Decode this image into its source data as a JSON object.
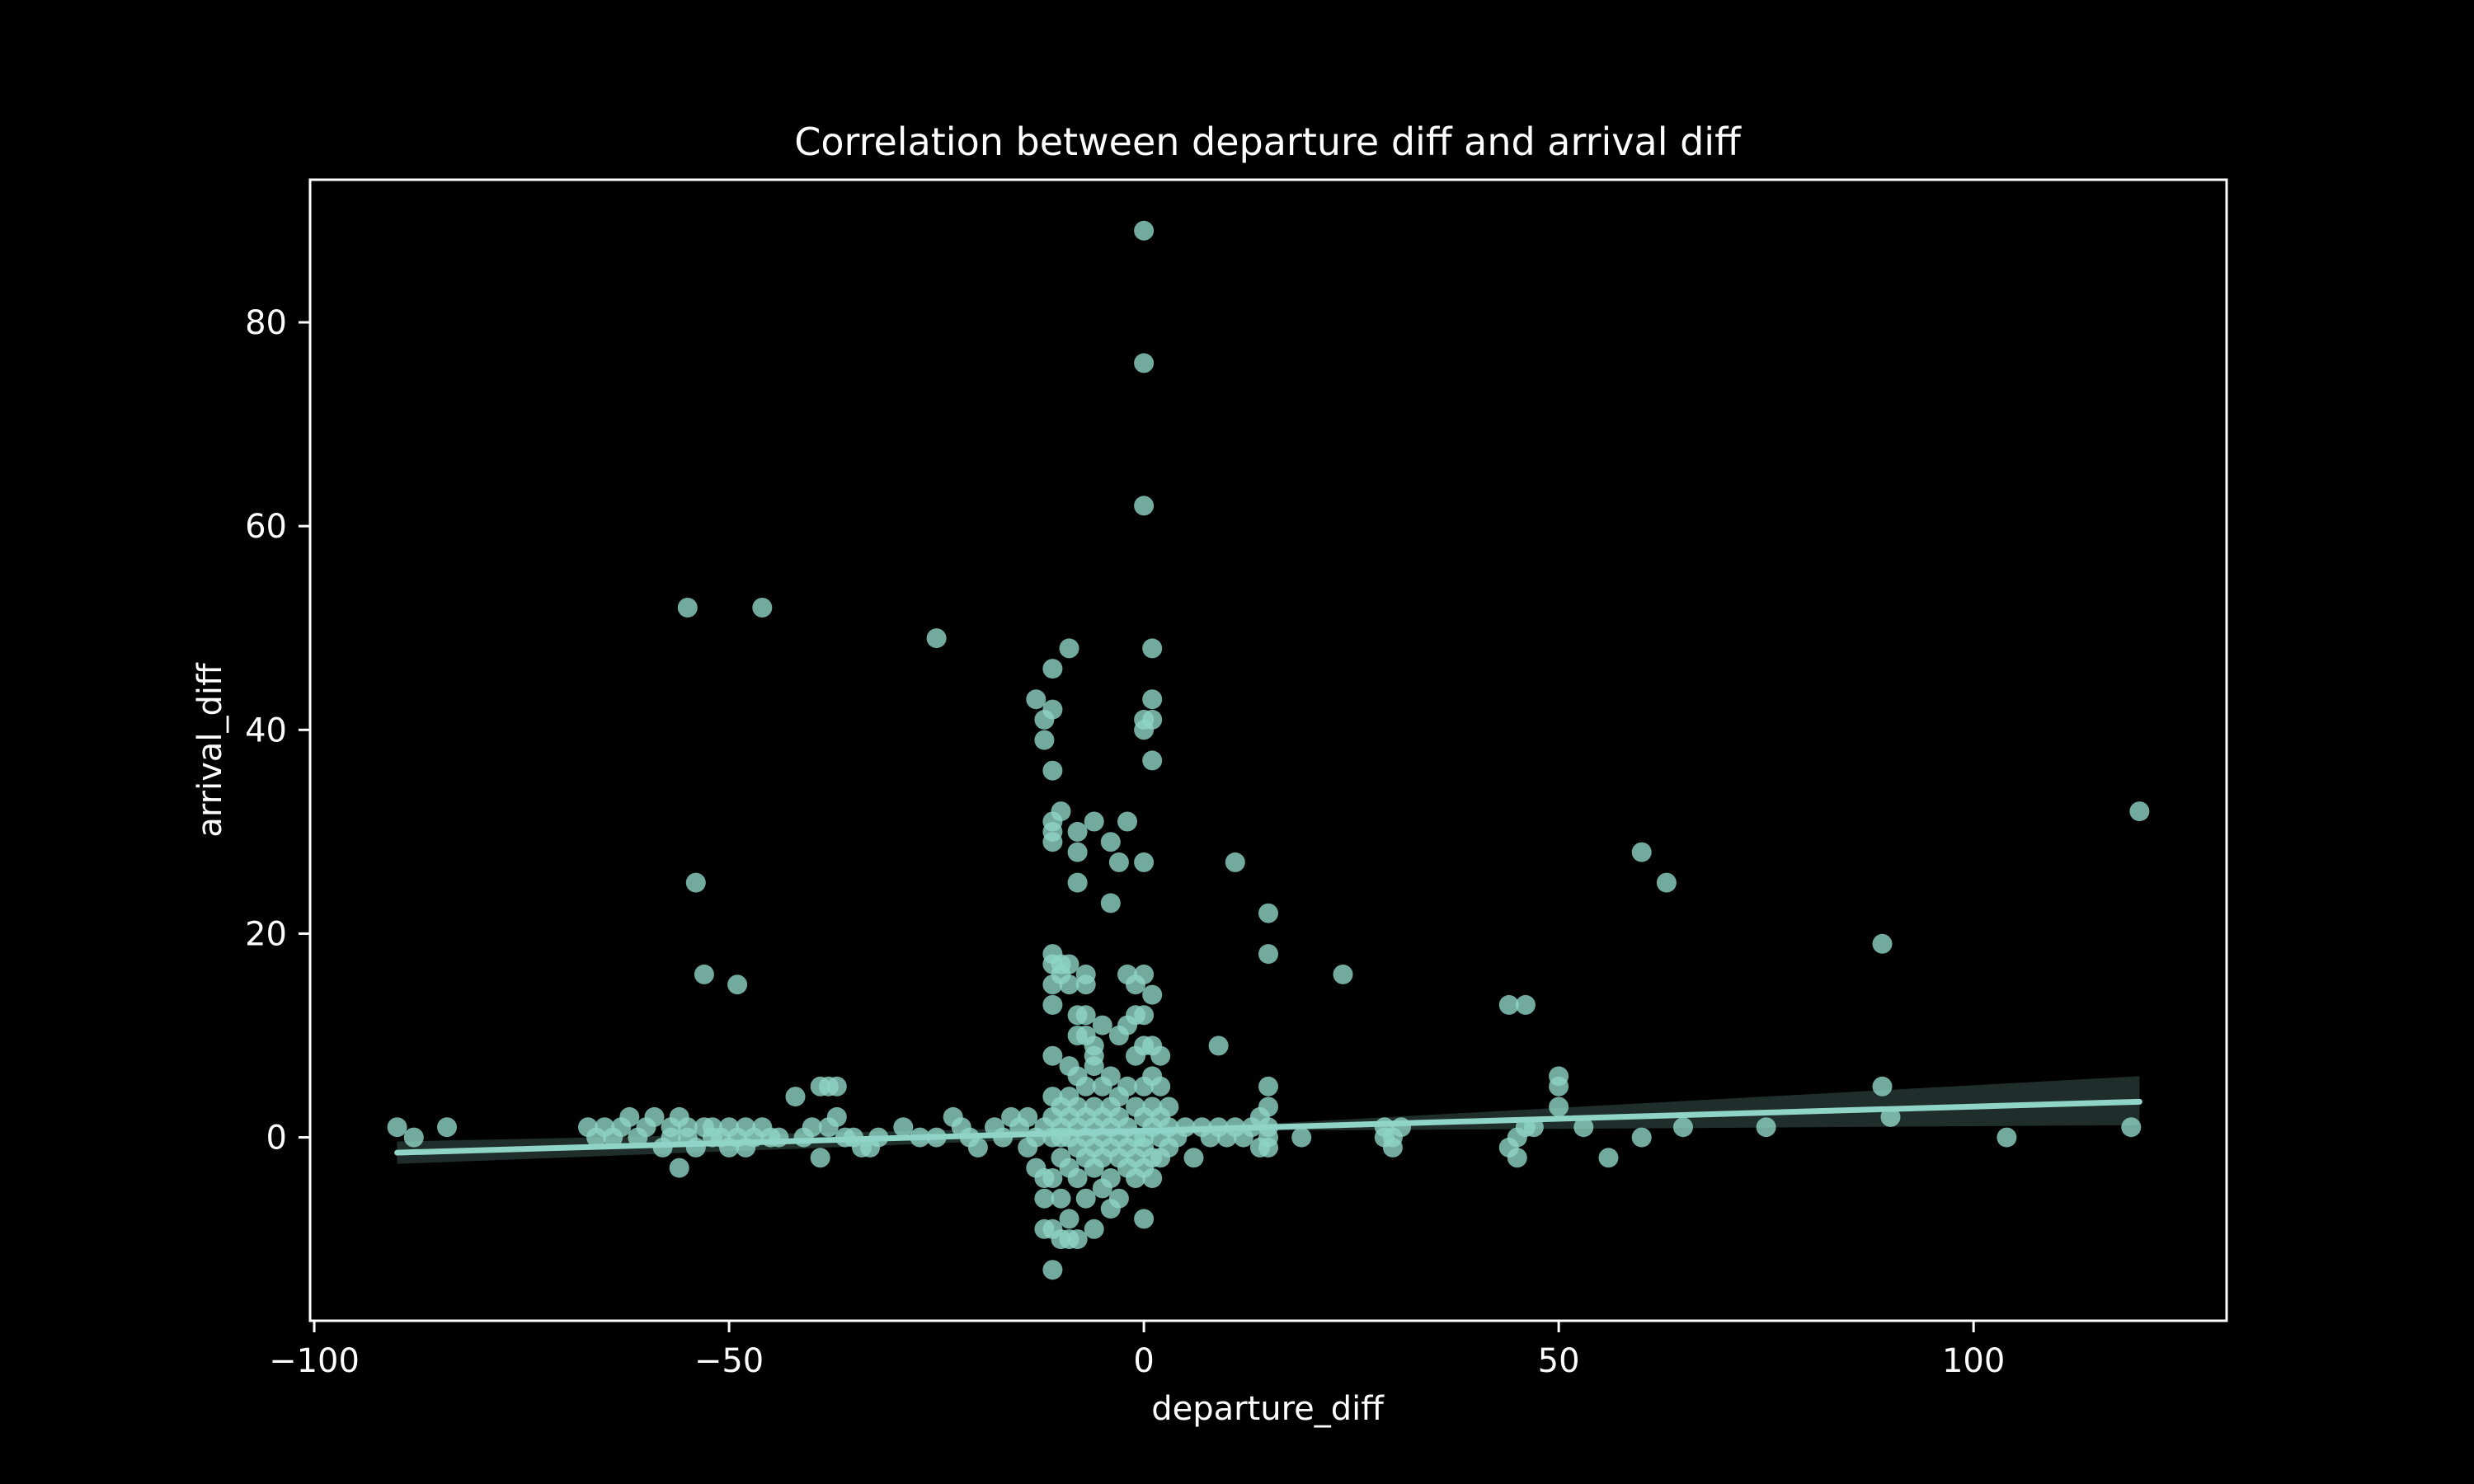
{
  "chart_data": {
    "type": "scatter",
    "title": "Correlation between departure diff and arrival diff",
    "xlabel": "departure_diff",
    "ylabel": "arrival_diff",
    "xlim": [
      -100.5,
      130.5
    ],
    "ylim": [
      -18,
      94
    ],
    "xticks": [
      -100,
      -50,
      0,
      50,
      100
    ],
    "xtick_labels": [
      "−100",
      "−50",
      "0",
      "50",
      "100"
    ],
    "yticks": [
      0,
      20,
      40,
      60,
      80
    ],
    "ytick_labels": [
      "0",
      "20",
      "40",
      "60",
      "80"
    ],
    "grid": false,
    "legend": "none",
    "colors": {
      "background": "#000000",
      "points": "#8fd4c6",
      "line": "#8fd4c6",
      "band": "#2a3d3a",
      "axes": "#ffffff"
    },
    "regression": {
      "x": [
        -90,
        120
      ],
      "y": [
        -1.5,
        3.5
      ],
      "ci_lower_end": [
        -2.6,
        1.2
      ],
      "ci_upper_end": [
        -0.4,
        6.0
      ]
    },
    "points": [
      [
        -90,
        1
      ],
      [
        -88,
        0
      ],
      [
        -84,
        1
      ],
      [
        -67,
        1
      ],
      [
        -66,
        0
      ],
      [
        -65,
        1
      ],
      [
        -64,
        0
      ],
      [
        -63,
        1
      ],
      [
        -62,
        2
      ],
      [
        -61,
        0
      ],
      [
        -60,
        1
      ],
      [
        -59,
        2
      ],
      [
        -58,
        -1
      ],
      [
        -57,
        0
      ],
      [
        -57,
        1
      ],
      [
        -56,
        -3
      ],
      [
        -56,
        2
      ],
      [
        -55,
        0
      ],
      [
        -55,
        1
      ],
      [
        -55,
        52
      ],
      [
        -54,
        25
      ],
      [
        -54,
        -1
      ],
      [
        -53,
        16
      ],
      [
        -53,
        1
      ],
      [
        -52,
        0
      ],
      [
        -52,
        1
      ],
      [
        -51,
        0
      ],
      [
        -50,
        1
      ],
      [
        -50,
        -1
      ],
      [
        -49,
        15
      ],
      [
        -49,
        0
      ],
      [
        -48,
        1
      ],
      [
        -48,
        -1
      ],
      [
        -47,
        0
      ],
      [
        -46,
        1
      ],
      [
        -46,
        52
      ],
      [
        -45,
        0
      ],
      [
        -44,
        0
      ],
      [
        -42,
        4
      ],
      [
        -41,
        0
      ],
      [
        -40,
        1
      ],
      [
        -39,
        5
      ],
      [
        -39,
        -2
      ],
      [
        -38,
        5
      ],
      [
        -38,
        1
      ],
      [
        -37,
        5
      ],
      [
        -37,
        2
      ],
      [
        -36,
        0
      ],
      [
        -35,
        0
      ],
      [
        -34,
        -1
      ],
      [
        -33,
        -1
      ],
      [
        -32,
        0
      ],
      [
        -29,
        1
      ],
      [
        -27,
        0
      ],
      [
        -25,
        49
      ],
      [
        -25,
        0
      ],
      [
        -23,
        2
      ],
      [
        -22,
        1
      ],
      [
        -21,
        0
      ],
      [
        -20,
        -1
      ],
      [
        -18,
        1
      ],
      [
        -17,
        0
      ],
      [
        -16,
        2
      ],
      [
        -15,
        1
      ],
      [
        -14,
        -1
      ],
      [
        -14,
        2
      ],
      [
        -13,
        43
      ],
      [
        -13,
        0
      ],
      [
        -13,
        -3
      ],
      [
        -12,
        -4
      ],
      [
        -12,
        41
      ],
      [
        -12,
        39
      ],
      [
        -12,
        -6
      ],
      [
        -12,
        -9
      ],
      [
        -12,
        1
      ],
      [
        -11,
        46
      ],
      [
        -11,
        42
      ],
      [
        -11,
        36
      ],
      [
        -11,
        31
      ],
      [
        -11,
        30
      ],
      [
        -11,
        29
      ],
      [
        -11,
        18
      ],
      [
        -11,
        17
      ],
      [
        -11,
        15
      ],
      [
        -11,
        13
      ],
      [
        -11,
        8
      ],
      [
        -11,
        4
      ],
      [
        -11,
        0
      ],
      [
        -11,
        -13
      ],
      [
        -11,
        -9
      ],
      [
        -11,
        -4
      ],
      [
        -11,
        2
      ],
      [
        -10,
        32
      ],
      [
        -10,
        17
      ],
      [
        -10,
        16
      ],
      [
        -10,
        -10
      ],
      [
        -10,
        3
      ],
      [
        -10,
        0
      ],
      [
        -10,
        -2
      ],
      [
        -10,
        -6
      ],
      [
        -10,
        1
      ],
      [
        -9,
        48
      ],
      [
        -9,
        17
      ],
      [
        -9,
        15
      ],
      [
        -9,
        7
      ],
      [
        -9,
        2
      ],
      [
        -9,
        0
      ],
      [
        -9,
        -3
      ],
      [
        -9,
        -8
      ],
      [
        -9,
        -10
      ],
      [
        -9,
        4
      ],
      [
        -8,
        30
      ],
      [
        -8,
        28
      ],
      [
        -8,
        25
      ],
      [
        -8,
        12
      ],
      [
        -8,
        10
      ],
      [
        -8,
        6
      ],
      [
        -8,
        3
      ],
      [
        -8,
        1
      ],
      [
        -8,
        -1
      ],
      [
        -8,
        -4
      ],
      [
        -8,
        -10
      ],
      [
        -7,
        16
      ],
      [
        -7,
        15
      ],
      [
        -7,
        12
      ],
      [
        -7,
        10
      ],
      [
        -7,
        5
      ],
      [
        -7,
        2
      ],
      [
        -7,
        0
      ],
      [
        -7,
        -2
      ],
      [
        -7,
        -6
      ],
      [
        -6,
        31
      ],
      [
        -6,
        9
      ],
      [
        -6,
        8
      ],
      [
        -6,
        7
      ],
      [
        -6,
        3
      ],
      [
        -6,
        1
      ],
      [
        -6,
        -1
      ],
      [
        -6,
        -3
      ],
      [
        -6,
        -9
      ],
      [
        -5,
        11
      ],
      [
        -5,
        5
      ],
      [
        -5,
        2
      ],
      [
        -5,
        0
      ],
      [
        -5,
        -2
      ],
      [
        -5,
        -5
      ],
      [
        -4,
        29
      ],
      [
        -4,
        23
      ],
      [
        -4,
        6
      ],
      [
        -4,
        3
      ],
      [
        -4,
        1
      ],
      [
        -4,
        -1
      ],
      [
        -4,
        -4
      ],
      [
        -4,
        -7
      ],
      [
        -3,
        27
      ],
      [
        -3,
        10
      ],
      [
        -3,
        4
      ],
      [
        -3,
        2
      ],
      [
        -3,
        0
      ],
      [
        -3,
        -2
      ],
      [
        -3,
        -6
      ],
      [
        -2,
        31
      ],
      [
        -2,
        16
      ],
      [
        -2,
        11
      ],
      [
        -2,
        5
      ],
      [
        -2,
        1
      ],
      [
        -2,
        -1
      ],
      [
        -2,
        -3
      ],
      [
        -1,
        15
      ],
      [
        -1,
        12
      ],
      [
        -1,
        8
      ],
      [
        -1,
        3
      ],
      [
        -1,
        0
      ],
      [
        -1,
        -2
      ],
      [
        -1,
        -4
      ],
      [
        0,
        89
      ],
      [
        0,
        76
      ],
      [
        0,
        62
      ],
      [
        0,
        41
      ],
      [
        0,
        40
      ],
      [
        0,
        27
      ],
      [
        0,
        16
      ],
      [
        0,
        12
      ],
      [
        0,
        9
      ],
      [
        0,
        5
      ],
      [
        0,
        2
      ],
      [
        0,
        0
      ],
      [
        0,
        -1
      ],
      [
        0,
        -3
      ],
      [
        0,
        -8
      ],
      [
        1,
        48
      ],
      [
        1,
        43
      ],
      [
        1,
        41
      ],
      [
        1,
        37
      ],
      [
        1,
        14
      ],
      [
        1,
        9
      ],
      [
        1,
        6
      ],
      [
        1,
        3
      ],
      [
        1,
        1
      ],
      [
        1,
        -2
      ],
      [
        1,
        -4
      ],
      [
        2,
        8
      ],
      [
        2,
        5
      ],
      [
        2,
        2
      ],
      [
        2,
        0
      ],
      [
        2,
        -2
      ],
      [
        3,
        3
      ],
      [
        3,
        1
      ],
      [
        3,
        -1
      ],
      [
        4,
        0
      ],
      [
        5,
        1
      ],
      [
        6,
        -2
      ],
      [
        7,
        1
      ],
      [
        8,
        0
      ],
      [
        9,
        9
      ],
      [
        9,
        1
      ],
      [
        10,
        0
      ],
      [
        11,
        27
      ],
      [
        11,
        1
      ],
      [
        12,
        0
      ],
      [
        13,
        1
      ],
      [
        14,
        -1
      ],
      [
        14,
        2
      ],
      [
        15,
        22
      ],
      [
        15,
        18
      ],
      [
        15,
        5
      ],
      [
        15,
        3
      ],
      [
        15,
        1
      ],
      [
        15,
        0
      ],
      [
        15,
        -1
      ],
      [
        19,
        0
      ],
      [
        24,
        16
      ],
      [
        29,
        0
      ],
      [
        29,
        1
      ],
      [
        30,
        -1
      ],
      [
        30,
        0
      ],
      [
        31,
        1
      ],
      [
        44,
        13
      ],
      [
        44,
        -1
      ],
      [
        45,
        0
      ],
      [
        45,
        -2
      ],
      [
        46,
        13
      ],
      [
        46,
        1
      ],
      [
        47,
        1
      ],
      [
        50,
        6
      ],
      [
        50,
        5
      ],
      [
        50,
        3
      ],
      [
        53,
        1
      ],
      [
        56,
        -2
      ],
      [
        60,
        28
      ],
      [
        60,
        0
      ],
      [
        63,
        25
      ],
      [
        65,
        1
      ],
      [
        75,
        1
      ],
      [
        89,
        19
      ],
      [
        89,
        5
      ],
      [
        90,
        2
      ],
      [
        104,
        0
      ],
      [
        119,
        1
      ],
      [
        120,
        32
      ]
    ]
  }
}
